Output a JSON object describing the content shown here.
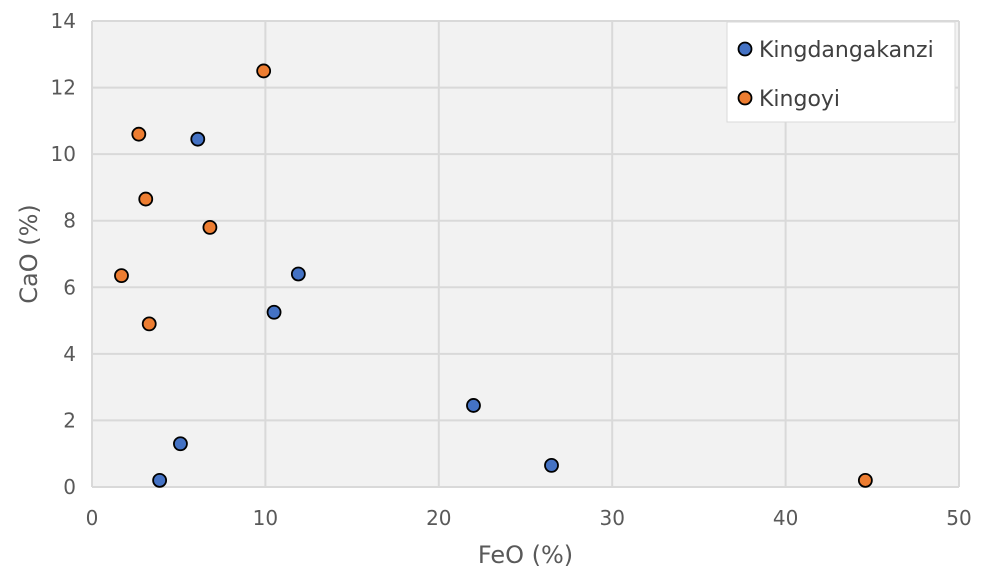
{
  "chart_data": {
    "type": "scatter",
    "xlabel": "FeO (%)",
    "ylabel": "CaO (%)",
    "xlim": [
      0,
      50
    ],
    "ylim": [
      0,
      14
    ],
    "xticks": [
      0,
      10,
      20,
      30,
      40,
      50
    ],
    "yticks": [
      0,
      2,
      4,
      6,
      8,
      10,
      12,
      14
    ],
    "grid": true,
    "legend_position": "top-right",
    "series": [
      {
        "name": "Kingdangakanzi",
        "color": "#4472C4",
        "x": [
          6.1,
          11.9,
          10.5,
          22.0,
          26.5,
          5.1,
          3.9
        ],
        "y": [
          10.45,
          6.4,
          5.25,
          2.45,
          0.65,
          1.3,
          0.2
        ]
      },
      {
        "name": "Kingoyi",
        "color": "#ED7D31",
        "x": [
          9.9,
          2.7,
          3.1,
          6.8,
          1.7,
          3.3,
          44.6
        ],
        "y": [
          12.5,
          10.6,
          8.65,
          7.8,
          6.35,
          4.9,
          0.2
        ]
      }
    ]
  }
}
